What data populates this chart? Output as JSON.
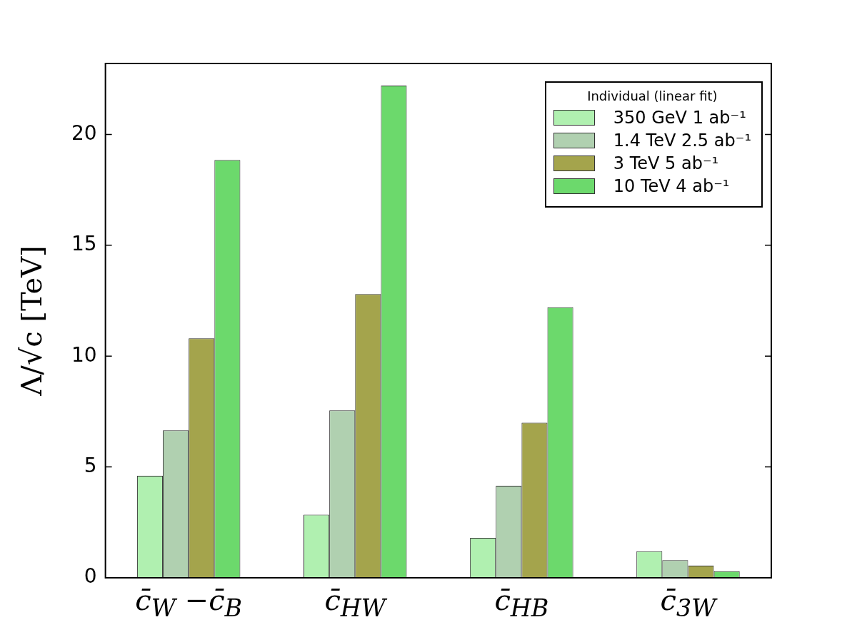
{
  "chart_data": {
    "type": "bar",
    "ylabel": "Λ/√c [TeV]",
    "legend_title": "Individual (linear fit)",
    "categories": [
      "c̄$_{W}$ −c̄$_{B}$",
      "c̄$_{HW}$",
      "c̄$_{HB}$",
      "c̄$_{3W}$"
    ],
    "series": [
      {
        "name": "350 GeV 1 ab⁻¹",
        "color": "#b0f0b0",
        "values": [
          4.6,
          2.85,
          1.8,
          1.2
        ]
      },
      {
        "name": "1.4 TeV 2.5 ab⁻¹",
        "color": "#b0d0b0",
        "values": [
          6.65,
          7.55,
          4.15,
          0.8
        ]
      },
      {
        "name": "3 TeV 5 ab⁻¹",
        "color": "#a4a44c",
        "values": [
          10.8,
          12.8,
          7.0,
          0.55
        ]
      },
      {
        "name": "10 TeV 4 ab⁻¹",
        "color": "#6cd96c",
        "values": [
          18.85,
          22.2,
          12.2,
          0.3
        ]
      }
    ],
    "ylim": [
      0,
      23.2
    ],
    "yticks": [
      0,
      5,
      10,
      15,
      20
    ],
    "grid": false,
    "legend": "top right"
  }
}
